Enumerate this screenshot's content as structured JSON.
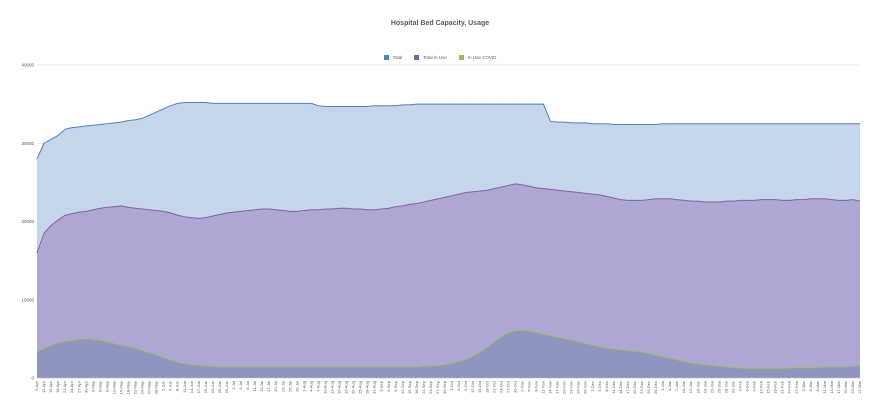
{
  "chart_data": {
    "type": "area",
    "title": "Hospital Bed Capacity, Usage",
    "xlabel": "",
    "ylabel": "",
    "ylim": [
      0,
      40000
    ],
    "yticks": [
      0,
      10000,
      20000,
      30000,
      40000
    ],
    "grid": true,
    "legend_position": "top",
    "x_ticks": [
      "9-Apr",
      "12-Apr",
      "15-Apr",
      "18-Apr",
      "21-Apr",
      "24-Apr",
      "27-Apr",
      "30-Apr",
      "3-May",
      "6-May",
      "9-May",
      "12-May",
      "15-May",
      "18-May",
      "21-May",
      "24-May",
      "27-May",
      "30-May",
      "2-Jun",
      "5-Jun",
      "8-Jun",
      "11-Jun",
      "14-Jun",
      "17-Jun",
      "20-Jun",
      "23-Jun",
      "26-Jun",
      "29-Jun",
      "2-Jul",
      "5-Jul",
      "8-Jul",
      "11-Jul",
      "14-Jul",
      "17-Jul",
      "20-Jul",
      "23-Jul",
      "26-Jul",
      "29-Jul",
      "1-Aug",
      "4-Aug",
      "7-Aug",
      "10-Aug",
      "13-Aug",
      "16-Aug",
      "19-Aug",
      "22-Aug",
      "25-Aug",
      "28-Aug",
      "31-Aug",
      "3-Sep",
      "6-Sep",
      "9-Sep",
      "12-Sep",
      "15-Sep",
      "18-Sep",
      "21-Sep",
      "24-Sep",
      "27-Sep",
      "30-Sep",
      "3-Oct",
      "6-Oct",
      "9-Oct",
      "12-Oct",
      "15-Oct",
      "18-Oct",
      "21-Oct",
      "24-Oct",
      "27-Oct",
      "30-Oct",
      "2-Nov",
      "5-Nov",
      "8-Nov",
      "11-Nov",
      "14-Nov",
      "17-Nov",
      "20-Nov",
      "23-Nov",
      "26-Nov",
      "29-Nov",
      "2-Dec",
      "5-Dec",
      "8-Dec",
      "11-Dec",
      "14-Dec",
      "17-Dec",
      "20-Dec",
      "23-Dec",
      "26-Dec",
      "29-Dec",
      "1-Jan",
      "4-Jan",
      "7-Jan",
      "10-Jan",
      "13-Jan",
      "16-Jan",
      "19-Jan",
      "22-Jan",
      "25-Jan",
      "28-Jan",
      "31-Jan",
      "3-Feb",
      "6-Feb",
      "9-Feb",
      "12-Feb",
      "15-Feb",
      "18-Feb",
      "21-Feb",
      "24-Feb",
      "27-Feb",
      "2-Mar",
      "5-Mar",
      "8-Mar",
      "11-Mar",
      "14-Mar",
      "17-Mar",
      "20-Mar",
      "23-Mar",
      "27-Mar"
    ],
    "series": [
      {
        "name": "Total",
        "color": "#4f81bd",
        "fill": "#c5d5ea",
        "values": [
          28000,
          30000,
          30500,
          31000,
          31800,
          32000,
          32100,
          32200,
          32300,
          32400,
          32500,
          32600,
          32700,
          32900,
          33000,
          33200,
          33600,
          34000,
          34400,
          34800,
          35100,
          35200,
          35200,
          35200,
          35200,
          35100,
          35100,
          35100,
          35100,
          35100,
          35100,
          35100,
          35100,
          35100,
          35100,
          35100,
          35100,
          35100,
          35100,
          35100,
          34800,
          34700,
          34700,
          34700,
          34700,
          34700,
          34700,
          34700,
          34800,
          34800,
          34800,
          34800,
          34900,
          34900,
          35000,
          35000,
          35000,
          35000,
          35000,
          35000,
          35000,
          35000,
          35000,
          35000,
          35000,
          35000,
          35000,
          35000,
          35000,
          35000,
          35000,
          35000,
          35000,
          32800,
          32700,
          32700,
          32600,
          32600,
          32600,
          32500,
          32500,
          32500,
          32400,
          32400,
          32400,
          32400,
          32400,
          32400,
          32400,
          32500,
          32500,
          32500,
          32500,
          32500,
          32500,
          32500,
          32500,
          32500,
          32500,
          32500,
          32500,
          32500,
          32500,
          32500,
          32500,
          32500,
          32500,
          32500,
          32500,
          32500,
          32500,
          32500,
          32500,
          32500,
          32500,
          32500,
          32500,
          32500
        ]
      },
      {
        "name": "Total In Use",
        "color": "#8064a2",
        "fill": "#afa7d3",
        "values": [
          16000,
          18500,
          19500,
          20200,
          20800,
          21000,
          21200,
          21300,
          21500,
          21700,
          21800,
          21900,
          22000,
          21800,
          21700,
          21600,
          21500,
          21400,
          21300,
          21100,
          20800,
          20600,
          20500,
          20400,
          20500,
          20700,
          20900,
          21100,
          21200,
          21300,
          21400,
          21500,
          21600,
          21600,
          21500,
          21400,
          21300,
          21300,
          21400,
          21500,
          21500,
          21600,
          21600,
          21700,
          21700,
          21600,
          21600,
          21500,
          21500,
          21600,
          21700,
          21900,
          22000,
          22200,
          22300,
          22500,
          22700,
          22900,
          23100,
          23300,
          23500,
          23700,
          23800,
          23900,
          24000,
          24200,
          24400,
          24600,
          24800,
          24700,
          24500,
          24300,
          24200,
          24100,
          24000,
          23900,
          23800,
          23700,
          23600,
          23500,
          23400,
          23200,
          23000,
          22800,
          22700,
          22700,
          22700,
          22800,
          22900,
          22900,
          22900,
          22800,
          22700,
          22600,
          22600,
          22500,
          22500,
          22500,
          22600,
          22600,
          22700,
          22700,
          22700,
          22800,
          22800,
          22800,
          22700,
          22700,
          22800,
          22800,
          22900,
          22900,
          22900,
          22800,
          22700,
          22700,
          22800,
          22600
        ]
      },
      {
        "name": "In Use COVID",
        "color": "#9bbb59",
        "fill": "#8f95c1",
        "values": [
          3300,
          3800,
          4200,
          4500,
          4700,
          4800,
          4900,
          5000,
          4900,
          4800,
          4600,
          4400,
          4200,
          4000,
          3800,
          3500,
          3200,
          2900,
          2600,
          2300,
          2000,
          1800,
          1700,
          1600,
          1500,
          1500,
          1400,
          1400,
          1400,
          1400,
          1400,
          1400,
          1400,
          1400,
          1400,
          1400,
          1400,
          1400,
          1400,
          1400,
          1400,
          1400,
          1400,
          1400,
          1400,
          1400,
          1400,
          1400,
          1400,
          1400,
          1400,
          1400,
          1400,
          1400,
          1400,
          1500,
          1500,
          1600,
          1700,
          1900,
          2100,
          2400,
          2800,
          3300,
          3900,
          4600,
          5300,
          5800,
          6000,
          6100,
          6000,
          5800,
          5600,
          5400,
          5200,
          5000,
          4800,
          4600,
          4400,
          4200,
          4000,
          3800,
          3700,
          3600,
          3500,
          3400,
          3300,
          3100,
          2900,
          2700,
          2500,
          2300,
          2100,
          1900,
          1800,
          1700,
          1600,
          1500,
          1400,
          1300,
          1300,
          1200,
          1200,
          1200,
          1200,
          1200,
          1200,
          1300,
          1300,
          1300,
          1300,
          1300,
          1400,
          1400,
          1400,
          1400,
          1500,
          1600
        ]
      }
    ]
  }
}
